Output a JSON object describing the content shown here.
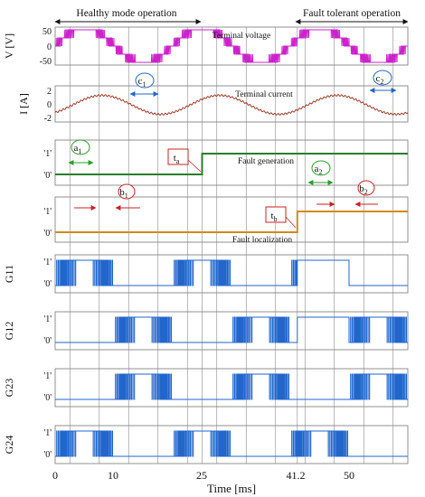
{
  "chart_data": {
    "type": "line",
    "x_label": "Time [ms]",
    "x_ticks": [
      "0",
      "10",
      "25",
      "41.2",
      "50"
    ],
    "x_tick_values": [
      0,
      10,
      25,
      41.2,
      50
    ],
    "x_range": [
      0,
      60
    ],
    "headers": {
      "healthy": "Healthy mode operation",
      "fault_tolerant": "Fault tolerant operation"
    },
    "cycle_period_ms": 20,
    "vertical_markers_ms": [
      2.5,
      7.5,
      12.5,
      17.5,
      22.5,
      25,
      27.5,
      32.5,
      37.5,
      41.2,
      42.5,
      47.5,
      52.5,
      57.5
    ],
    "panels": {
      "voltage": {
        "ylabel": "V [V]",
        "yticks": [
          "50",
          "0",
          "-50"
        ],
        "title": "Terminal voltage",
        "color": "#cc22cc",
        "levels_v": [
          -50,
          -25,
          0,
          25,
          50
        ],
        "amplitude_v": 50
      },
      "current": {
        "ylabel": "I [A]",
        "yticks": [
          "2",
          "0",
          "-2"
        ],
        "title": "Terminal current",
        "color": "#a03c28",
        "amplitude_a": 1.4
      },
      "fault_generation": {
        "yticks": [
          "'1'",
          "'0'"
        ],
        "title": "Fault generation",
        "color": "#2a7d2a",
        "step_ms": 25
      },
      "fault_localization": {
        "yticks": [
          "'1'",
          "'0'"
        ],
        "title": "Fault localization",
        "color": "#d08a1e",
        "step_ms": 41.2
      },
      "gates": [
        {
          "ylabel": "G11",
          "yticks": [
            "'1'",
            "'0'"
          ],
          "color": "#2266cc"
        },
        {
          "ylabel": "G12",
          "yticks": [
            "'1'",
            "'0'"
          ],
          "color": "#2266cc"
        },
        {
          "ylabel": "G23",
          "yticks": [
            "'1'",
            "'0'"
          ],
          "color": "#2266cc"
        },
        {
          "ylabel": "G24",
          "yticks": [
            "'1'",
            "'0'"
          ],
          "color": "#2266cc"
        }
      ]
    },
    "annotations": {
      "c1": {
        "letter": "c",
        "sub": "1",
        "color": "#2266cc"
      },
      "c2": {
        "letter": "c",
        "sub": "2",
        "color": "#2266cc"
      },
      "a1": {
        "letter": "a",
        "sub": "1",
        "color": "#2a9d2a"
      },
      "a2": {
        "letter": "a",
        "sub": "2",
        "color": "#2a9d2a"
      },
      "b1": {
        "letter": "b",
        "sub": "1",
        "color": "#cc2222"
      },
      "b2": {
        "letter": "b",
        "sub": "2",
        "color": "#cc2222"
      },
      "ta": {
        "letter": "t",
        "sub": "a",
        "color": "#cc2222"
      },
      "tb": {
        "letter": "t",
        "sub": "b",
        "color": "#cc2222"
      }
    }
  }
}
